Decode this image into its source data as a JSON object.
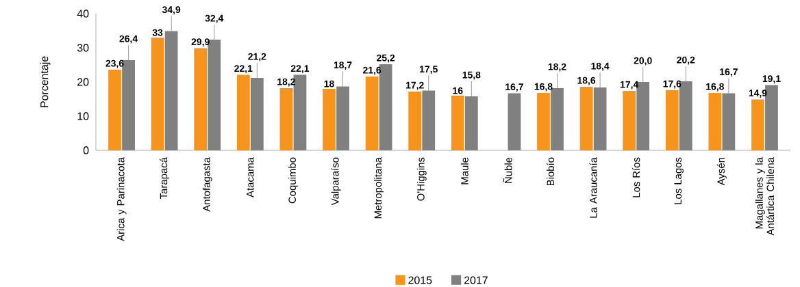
{
  "chart_data": {
    "type": "bar",
    "ylabel": "Porcentaje",
    "categories": [
      "Arica y Parinacota",
      "Tarapacá",
      "Antofagasta",
      "Atacama",
      "Coquimbo",
      "Valparaíso",
      "Metropolitana",
      "O'Higgins",
      "Maule",
      "Ñuble",
      "Biobío",
      "La Araucanía",
      "Los Ríos",
      "Los Lagos",
      "Aysén",
      "Magallanes y la Antártica Chilena"
    ],
    "series": [
      {
        "name": "2015",
        "color": "#f7941d",
        "values": [
          23.6,
          33,
          29.9,
          22.1,
          18.2,
          18,
          21.6,
          17.2,
          16,
          null,
          16.8,
          18.6,
          17.4,
          17.6,
          16.8,
          14.9
        ],
        "value_labels": [
          "23,6",
          "33",
          "29,9",
          "22,1",
          "18,2",
          "18",
          "21,6",
          "17,2",
          "16",
          null,
          "16,8",
          "18,6",
          "17,4",
          "17,6",
          "16,8",
          "14,9"
        ]
      },
      {
        "name": "2017",
        "color": "#808080",
        "values": [
          26.4,
          34.9,
          32.4,
          21.2,
          22.1,
          18.7,
          25.2,
          17.5,
          15.8,
          16.7,
          18.2,
          18.4,
          20.0,
          20.2,
          16.7,
          19.1
        ],
        "value_labels": [
          "26,4",
          "34,9",
          "32,4",
          "21,2",
          "22,1",
          "18,7",
          "25,2",
          "17,5",
          "15,8",
          "16,7",
          "18,2",
          "18,4",
          "20,0",
          "20,2",
          "16,7",
          "19,1"
        ]
      }
    ],
    "ylim": [
      0,
      40
    ],
    "yticks": [
      0,
      10,
      20,
      30,
      40
    ],
    "grid": false,
    "legend": "bottom"
  }
}
